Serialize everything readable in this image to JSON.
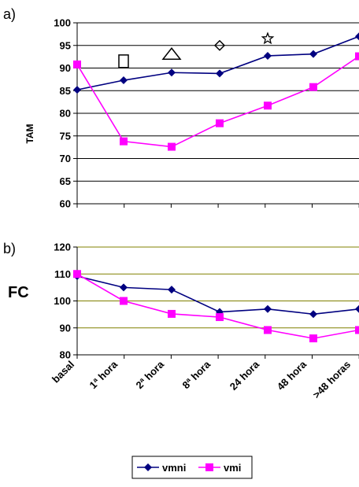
{
  "chart_data": [
    {
      "id": "a",
      "type": "line",
      "panel_label": "a)",
      "ylabel": "TAM",
      "ylim": [
        60,
        100
      ],
      "yticks": [
        60,
        65,
        70,
        75,
        80,
        85,
        90,
        95,
        100
      ],
      "grid": true,
      "categories": [
        "basal",
        "1ª hora",
        "2ª hora",
        "8ª hora",
        "24 hora",
        "48 hora",
        ">48 horas"
      ],
      "series": [
        {
          "name": "vmni",
          "color": "#000080",
          "marker": "diamond",
          "values": [
            85.2,
            87.3,
            89.0,
            88.8,
            92.7,
            93.1,
            97.0
          ]
        },
        {
          "name": "vmi",
          "color": "#FF00FF",
          "marker": "square",
          "values": [
            90.8,
            73.8,
            72.6,
            77.8,
            81.7,
            85.8,
            92.6
          ]
        }
      ],
      "annotations": [
        {
          "symbol": "square-icon",
          "category_index": 1,
          "y": 91.5
        },
        {
          "symbol": "triangle-icon",
          "category_index": 2,
          "y": 93.0
        },
        {
          "symbol": "diamond-icon",
          "category_index": 3,
          "y": 95.0
        },
        {
          "symbol": "star-icon",
          "category_index": 4,
          "y": 96.5
        }
      ]
    },
    {
      "id": "b",
      "type": "line",
      "panel_label": "b)",
      "ylabel": "FC",
      "ylim": [
        80,
        120
      ],
      "yticks": [
        80,
        90,
        100,
        110,
        120
      ],
      "grid": true,
      "categories": [
        "basal",
        "1ª hora",
        "2ª hora",
        "8ª hora",
        "24 hora",
        "48 hora",
        ">48 horas"
      ],
      "series": [
        {
          "name": "vmni",
          "color": "#000080",
          "marker": "diamond",
          "values": [
            109.2,
            105.0,
            104.2,
            95.9,
            97.0,
            95.1,
            97.0
          ]
        },
        {
          "name": "vmi",
          "color": "#FF00FF",
          "marker": "square",
          "values": [
            110.0,
            100.0,
            95.2,
            94.0,
            89.2,
            86.1,
            89.2
          ]
        }
      ]
    }
  ],
  "legend": {
    "position": "bottom",
    "items": [
      {
        "name": "vmni",
        "color": "#000080",
        "marker": "diamond"
      },
      {
        "name": "vmi",
        "color": "#FF00FF",
        "marker": "square"
      }
    ]
  }
}
